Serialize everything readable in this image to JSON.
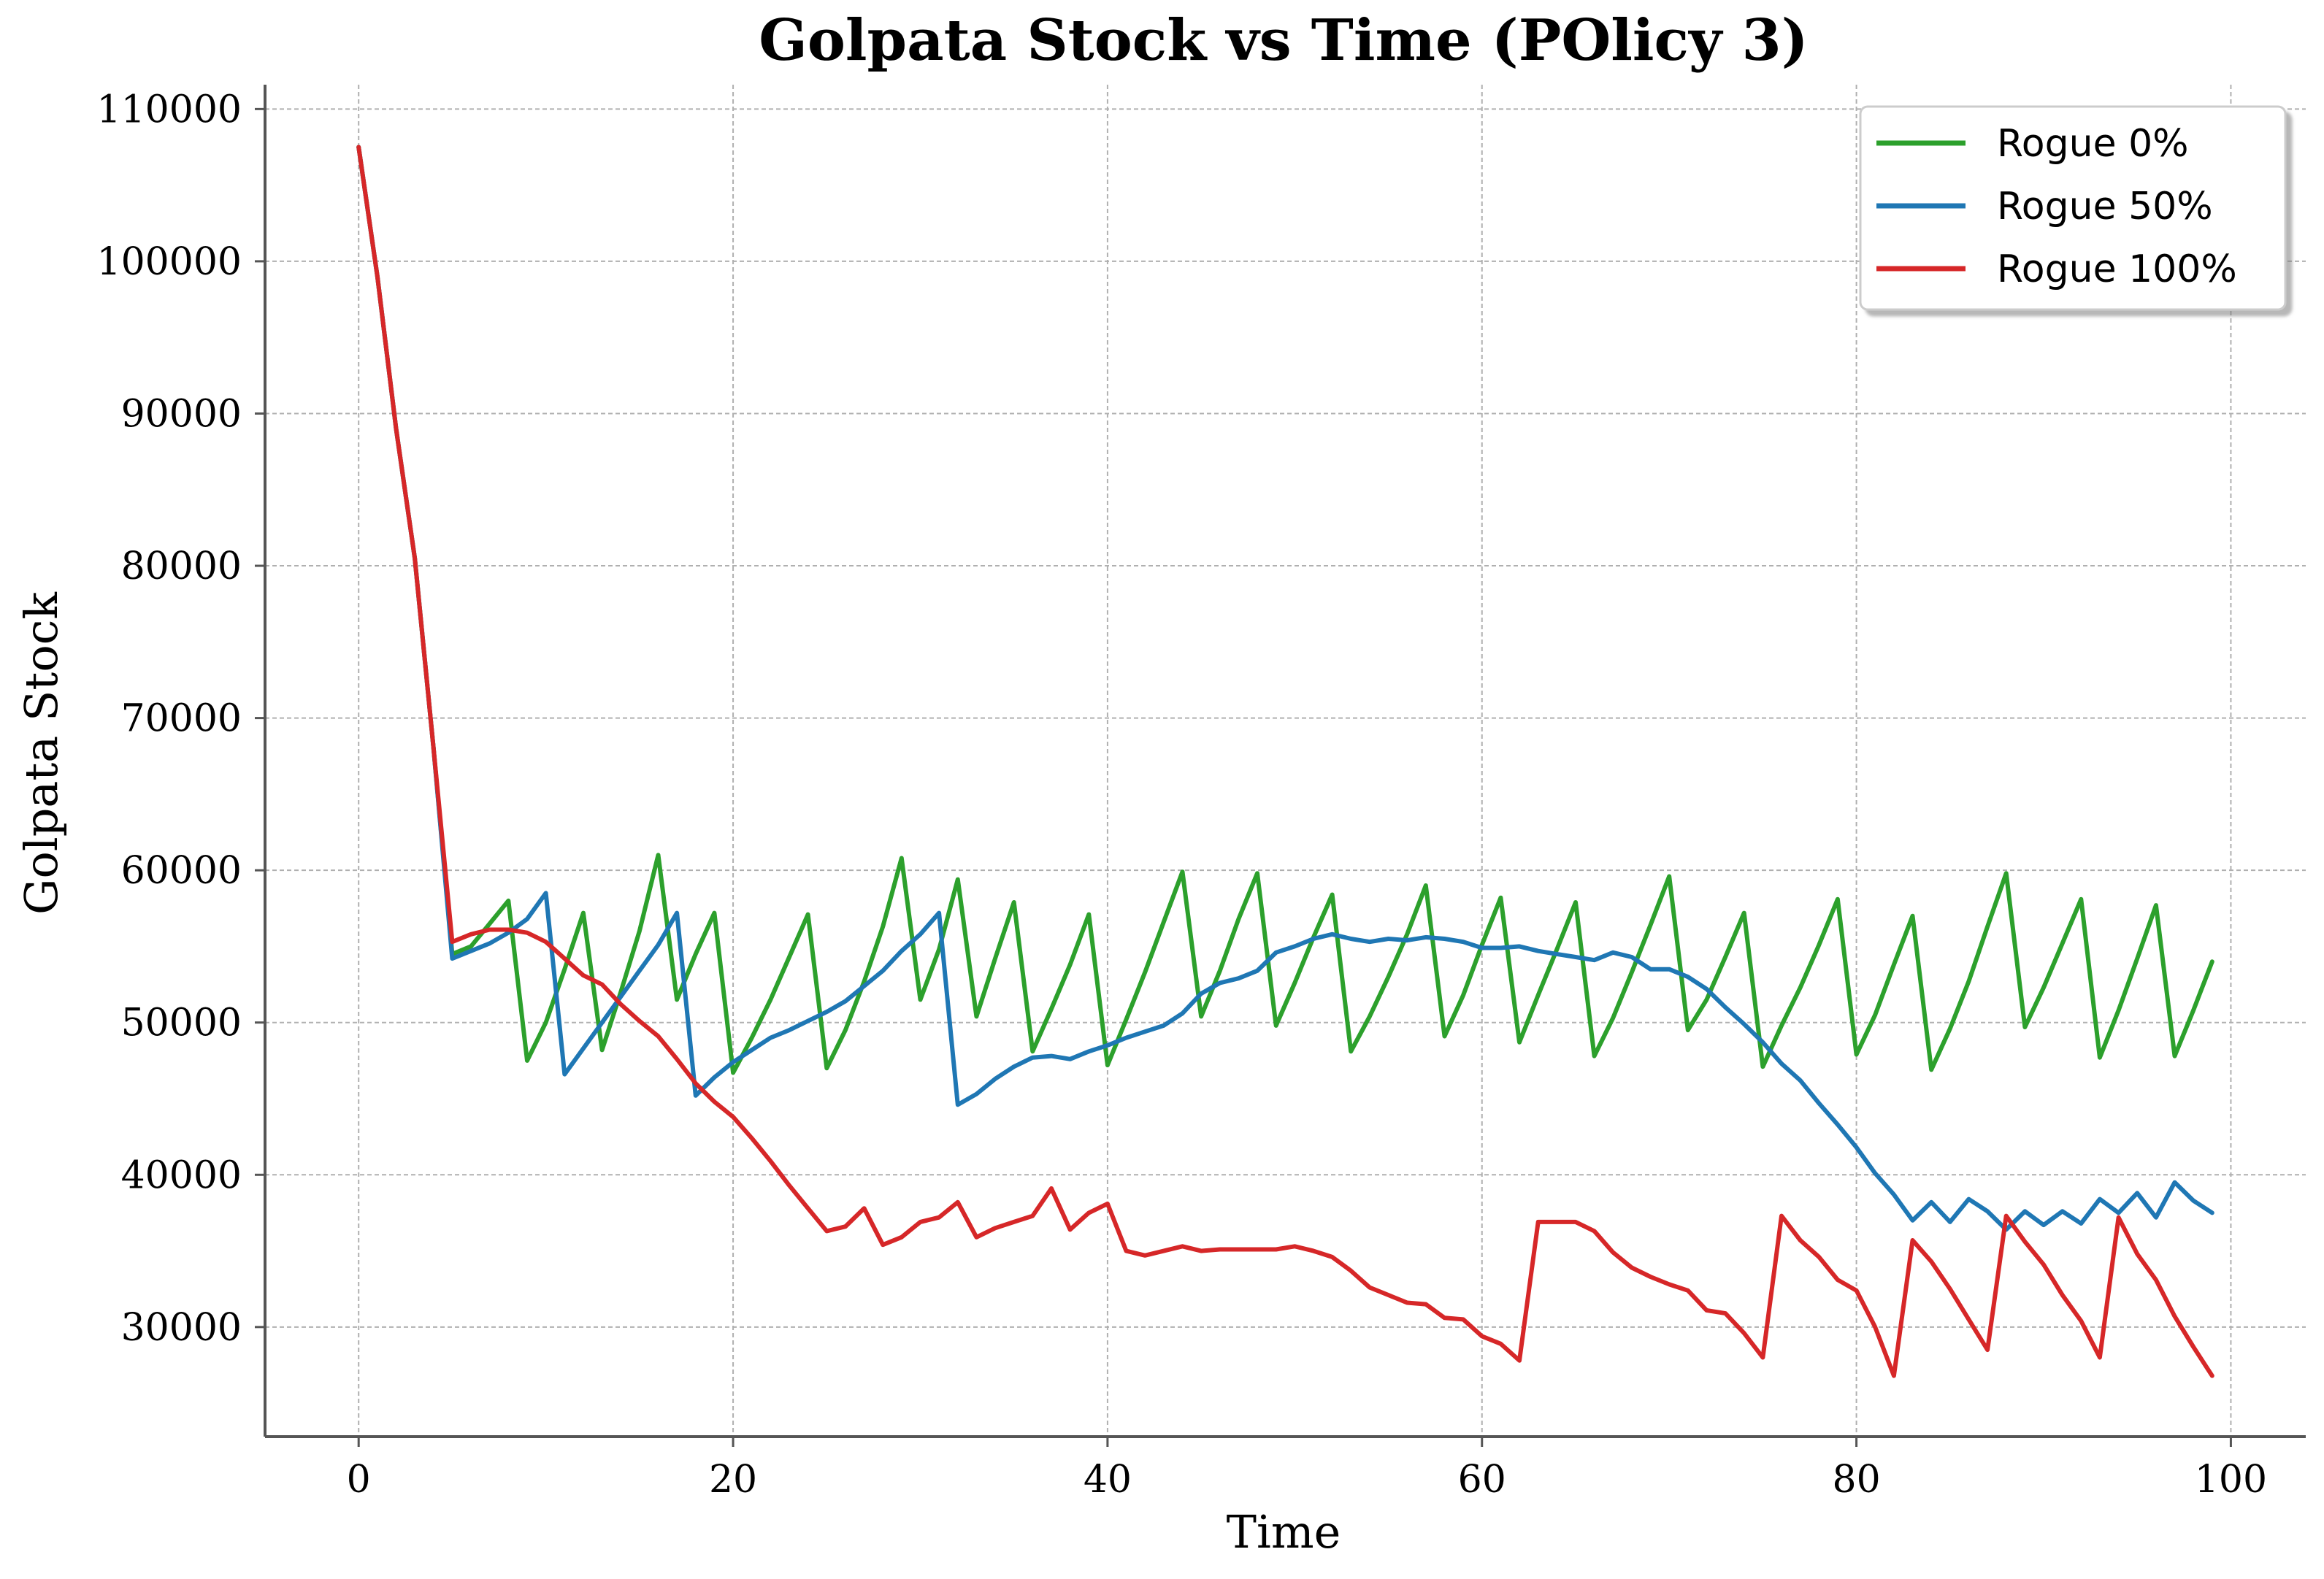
{
  "chart_data": {
    "type": "line",
    "title": "Golpata Stock vs Time (POlicy 3)",
    "xlabel": "Time",
    "ylabel": "Golpata Stock",
    "xlim": [
      -5,
      104
    ],
    "ylim": [
      22800,
      111600
    ],
    "x_ticks": [
      0,
      20,
      40,
      60,
      80,
      100
    ],
    "y_ticks": [
      30000,
      40000,
      50000,
      60000,
      70000,
      80000,
      90000,
      100000,
      110000
    ],
    "grid": true,
    "grid_style": "dashed",
    "legend_position": "top-right",
    "series": [
      {
        "name": "Rogue 0%",
        "color": "#2ca02c",
        "values": [
          107500,
          99000,
          89000,
          80500,
          68000,
          54500,
          55000,
          56500,
          58000,
          47500,
          50000,
          53500,
          57200,
          48200,
          52000,
          56000,
          61000,
          51500,
          54500,
          57200,
          46700,
          49000,
          51500,
          54300,
          57100,
          47000,
          49500,
          52700,
          56300,
          60800,
          51500,
          54800,
          59400,
          50400,
          54200,
          57900,
          48100,
          50900,
          53800,
          57100,
          47200,
          50200,
          53300,
          56600,
          59900,
          50400,
          53400,
          56800,
          59800,
          49800,
          52600,
          55600,
          58400,
          48100,
          50400,
          53000,
          55800,
          59000,
          49100,
          51800,
          55100,
          58200,
          48700,
          51800,
          54800,
          57900,
          47800,
          50300,
          53300,
          56400,
          59600,
          49500,
          51500,
          54300,
          57200,
          47100,
          49800,
          52300,
          55100,
          58100,
          47900,
          50500,
          53800,
          57000,
          46900,
          49600,
          52700,
          56300,
          59800,
          49700,
          52300,
          55200,
          58100,
          47700,
          50800,
          54200,
          57700,
          47800,
          50800,
          54000
        ]
      },
      {
        "name": "Rogue 50%",
        "color": "#1f77b4",
        "values": [
          107500,
          99000,
          89000,
          80500,
          68000,
          54200,
          54700,
          55200,
          55900,
          56800,
          58500,
          46600,
          48300,
          50000,
          51700,
          53400,
          55100,
          57200,
          45200,
          46400,
          47400,
          48200,
          49000,
          49500,
          50100,
          50700,
          51400,
          52400,
          53400,
          54700,
          55800,
          57200,
          44600,
          45300,
          46300,
          47100,
          47700,
          47800,
          47600,
          48100,
          48500,
          49000,
          49400,
          49800,
          50600,
          51900,
          52600,
          52900,
          53400,
          54600,
          55000,
          55500,
          55800,
          55500,
          55300,
          55500,
          55400,
          55600,
          55500,
          55300,
          54900,
          54900,
          55000,
          54700,
          54500,
          54300,
          54100,
          54600,
          54300,
          53500,
          53500,
          53000,
          52200,
          51000,
          49900,
          48700,
          47300,
          46200,
          44700,
          43300,
          41800,
          40100,
          38700,
          37000,
          38200,
          36900,
          38400,
          37600,
          36400,
          37600,
          36700,
          37600,
          36800,
          38400,
          37500,
          38800,
          37200,
          39500,
          38300,
          37500
        ]
      },
      {
        "name": "Rogue 100%",
        "color": "#d62728",
        "values": [
          107500,
          99000,
          89000,
          80500,
          68000,
          55300,
          55800,
          56100,
          56100,
          55900,
          55300,
          54200,
          53100,
          52500,
          51200,
          50100,
          49100,
          47600,
          46000,
          44800,
          43800,
          42400,
          40900,
          39300,
          37800,
          36300,
          36600,
          37800,
          35400,
          35900,
          36900,
          37200,
          38200,
          35900,
          36500,
          36900,
          37300,
          39100,
          36400,
          37500,
          38100,
          35000,
          34700,
          35000,
          35300,
          35000,
          35100,
          35100,
          35100,
          35100,
          35300,
          35000,
          34600,
          33700,
          32600,
          32100,
          31600,
          31500,
          30600,
          30500,
          29400,
          28900,
          27800,
          36900,
          36900,
          36900,
          36300,
          34900,
          33900,
          33300,
          32800,
          32400,
          31100,
          30900,
          29600,
          28000,
          37300,
          35700,
          34600,
          33100,
          32400,
          30000,
          26800,
          35700,
          34300,
          32500,
          30500,
          28500,
          37300,
          35600,
          34100,
          32100,
          30400,
          28000,
          37200,
          34800,
          33100,
          30700,
          28700,
          26800
        ]
      }
    ]
  }
}
